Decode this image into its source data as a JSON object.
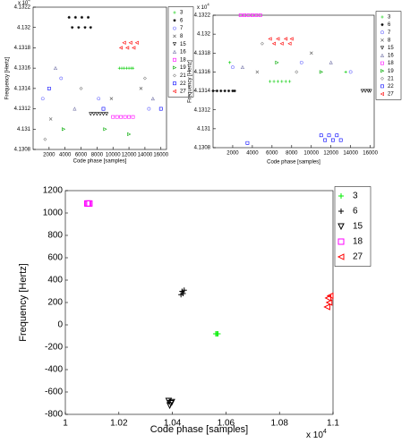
{
  "chart_data": [
    {
      "type": "scatter",
      "xlabel": "Code phase [samples]",
      "ylabel": "Frequency [Hertz]",
      "y_multiplier": {
        "base": "x 10",
        "power": "4"
      },
      "xlim": [
        0,
        16700
      ],
      "xticks": [
        2000,
        4000,
        6000,
        8000,
        10000,
        12000,
        14000,
        16000
      ],
      "ylim": [
        4.1308,
        4.1322
      ],
      "yticks": [
        4.1308,
        4.131,
        4.1312,
        4.1314,
        4.1316,
        4.1318,
        4.132,
        4.1322
      ],
      "series": [
        {
          "name": "3",
          "color": "#00cc00",
          "marker": "plus",
          "x": [
            10800,
            11100,
            11400,
            11700,
            12000,
            12300,
            12500
          ],
          "y": [
            4.1316,
            4.1316,
            4.1316,
            4.1316,
            4.1316,
            4.1316,
            4.1316
          ]
        },
        {
          "name": "6",
          "color": "#000000",
          "marker": "star",
          "x": [
            4500,
            4900,
            5300,
            5700,
            6100,
            6500,
            6900,
            7200
          ],
          "y": [
            4.1321,
            4.132,
            4.1321,
            4.132,
            4.1321,
            4.132,
            4.1321,
            4.132
          ]
        },
        {
          "name": "7",
          "color": "#6a6aff",
          "marker": "circle",
          "x": [
            1200,
            3500,
            8200,
            14500
          ],
          "y": [
            4.1313,
            4.1315,
            4.1313,
            4.1312
          ]
        },
        {
          "name": "8",
          "color": "#555555",
          "marker": "x",
          "x": [
            2200,
            9800,
            13500
          ],
          "y": [
            4.1311,
            4.1313,
            4.1314
          ]
        },
        {
          "name": "15",
          "color": "#000000",
          "marker": "triangle-down",
          "x": [
            7200,
            7600,
            8000,
            8400,
            8800,
            9200
          ],
          "y": [
            4.13115,
            4.13115,
            4.13115,
            4.13115,
            4.13115,
            4.13115
          ]
        },
        {
          "name": "16",
          "color": "#7777aa",
          "marker": "triangle-up",
          "x": [
            5200,
            15000,
            2800
          ],
          "y": [
            4.1312,
            4.1313,
            4.1316
          ]
        },
        {
          "name": "18",
          "color": "#ff00ff",
          "marker": "square",
          "x": [
            10000,
            10500,
            11000,
            11500,
            12000,
            12500
          ],
          "y": [
            4.13112,
            4.13112,
            4.13112,
            4.13112,
            4.13112,
            4.13112
          ]
        },
        {
          "name": "19",
          "color": "#00aa00",
          "marker": "triangle-right",
          "x": [
            12000,
            3800,
            9000
          ],
          "y": [
            4.13095,
            4.131,
            4.131
          ]
        },
        {
          "name": "21",
          "color": "#888888",
          "marker": "diamond",
          "x": [
            1500,
            6000,
            14000
          ],
          "y": [
            4.1309,
            4.1314,
            4.1315
          ]
        },
        {
          "name": "22",
          "color": "#0000ff",
          "marker": "square",
          "x": [
            8800,
            2000,
            16000
          ],
          "y": [
            4.1312,
            4.1314,
            4.1312
          ]
        },
        {
          "name": "27",
          "color": "#ff0000",
          "marker": "triangle-left",
          "x": [
            11000,
            11400,
            11800,
            12200,
            12600,
            13000
          ],
          "y": [
            4.1318,
            4.13185,
            4.1318,
            4.13185,
            4.1318,
            4.13185
          ]
        }
      ]
    },
    {
      "type": "scatter",
      "xlabel": "Code phase [samples]",
      "ylabel": "Frequency [Hertz]",
      "y_multiplier": {
        "base": "x 10",
        "power": "4"
      },
      "xlim": [
        0,
        16400
      ],
      "xticks": [
        2000,
        4000,
        6000,
        8000,
        10000,
        12000,
        14000,
        16000
      ],
      "ylim": [
        4.1308,
        4.1322
      ],
      "yticks": [
        4.1308,
        4.131,
        4.1312,
        4.1314,
        4.1316,
        4.1318,
        4.132,
        4.1322
      ],
      "series": [
        {
          "name": "3",
          "color": "#00cc00",
          "marker": "plus",
          "x": [
            5800,
            6200,
            6600,
            7000,
            7400,
            7800,
            1700,
            13500
          ],
          "y": [
            4.1315,
            4.1315,
            4.1315,
            4.1315,
            4.1315,
            4.1315,
            4.1317,
            4.1316
          ]
        },
        {
          "name": "6",
          "color": "#000000",
          "marker": "star",
          "x": [
            0,
            400,
            800,
            1200,
            1600,
            2000,
            2200
          ],
          "y": [
            4.1314,
            4.1314,
            4.1314,
            4.1314,
            4.1314,
            4.1314,
            4.1314
          ]
        },
        {
          "name": "7",
          "color": "#6a6aff",
          "marker": "circle",
          "x": [
            2000,
            9000,
            14000
          ],
          "y": [
            4.13165,
            4.1317,
            4.1316
          ]
        },
        {
          "name": "8",
          "color": "#555555",
          "marker": "x",
          "x": [
            4500,
            10000
          ],
          "y": [
            4.1316,
            4.1318
          ]
        },
        {
          "name": "15",
          "color": "#000000",
          "marker": "triangle-down",
          "x": [
            15200,
            15500,
            15800,
            16000
          ],
          "y": [
            4.1314,
            4.1314,
            4.1314,
            4.1314
          ]
        },
        {
          "name": "16",
          "color": "#7777aa",
          "marker": "triangle-up",
          "x": [
            3000,
            12000
          ],
          "y": [
            4.13165,
            4.1317
          ]
        },
        {
          "name": "18",
          "color": "#ff00ff",
          "marker": "square",
          "x": [
            2800,
            3200,
            3600,
            4000,
            4400,
            4800
          ],
          "y": [
            4.1322,
            4.1322,
            4.1322,
            4.1322,
            4.1322,
            4.1322
          ]
        },
        {
          "name": "19",
          "color": "#00aa00",
          "marker": "triangle-right",
          "x": [
            11000,
            6500
          ],
          "y": [
            4.1316,
            4.1317
          ]
        },
        {
          "name": "21",
          "color": "#888888",
          "marker": "diamond",
          "x": [
            8500,
            5000
          ],
          "y": [
            4.1316,
            4.1319
          ]
        },
        {
          "name": "22",
          "color": "#0000ff",
          "marker": "square",
          "x": [
            11000,
            11400,
            11800,
            12200,
            12600,
            13000,
            3500
          ],
          "y": [
            4.13093,
            4.13088,
            4.13093,
            4.13088,
            4.13093,
            4.13088,
            4.13085
          ]
        },
        {
          "name": "27",
          "color": "#ff0000",
          "marker": "triangle-left",
          "x": [
            5800,
            6200,
            6600,
            7000,
            7400,
            7800,
            8000
          ],
          "y": [
            4.13195,
            4.1319,
            4.13195,
            4.1319,
            4.13195,
            4.1319,
            4.13195
          ]
        }
      ]
    },
    {
      "type": "scatter",
      "xlabel": "Code phase [samples]",
      "ylabel": "Frequency [Hertz]",
      "x_multiplier": {
        "base": "x 10",
        "power": "4"
      },
      "xlim": [
        1,
        1.1
      ],
      "xticks": [
        1,
        1.02,
        1.04,
        1.06,
        1.08,
        1.1
      ],
      "ylim": [
        -800,
        1200
      ],
      "yticks": [
        -800,
        -600,
        -400,
        -200,
        0,
        200,
        400,
        600,
        800,
        1000,
        1200
      ],
      "series": [
        {
          "name": "3",
          "color": "#00ee00",
          "marker": "plus",
          "x": [
            1.0562,
            1.0566,
            1.057
          ],
          "y": [
            -80,
            -80,
            -80
          ]
        },
        {
          "name": "6",
          "color": "#000000",
          "marker": "plus",
          "x": [
            1.0432,
            1.0436,
            1.044,
            1.0444
          ],
          "y": [
            270,
            300,
            280,
            310
          ]
        },
        {
          "name": "15",
          "color": "#000000",
          "marker": "triangle-down",
          "x": [
            1.0386,
            1.039,
            1.0394,
            1.0398
          ],
          "y": [
            -680,
            -720,
            -700,
            -690
          ]
        },
        {
          "name": "18",
          "color": "#ff00ff",
          "marker": "square",
          "x": [
            1.0082,
            1.0086,
            1.009
          ],
          "y": [
            1085,
            1085,
            1085
          ]
        },
        {
          "name": "27",
          "color": "#ff0000",
          "marker": "triangle-left",
          "x": [
            1.0978,
            1.0982,
            1.0986,
            1.099
          ],
          "y": [
            160,
            240,
            200,
            260
          ]
        }
      ]
    }
  ]
}
